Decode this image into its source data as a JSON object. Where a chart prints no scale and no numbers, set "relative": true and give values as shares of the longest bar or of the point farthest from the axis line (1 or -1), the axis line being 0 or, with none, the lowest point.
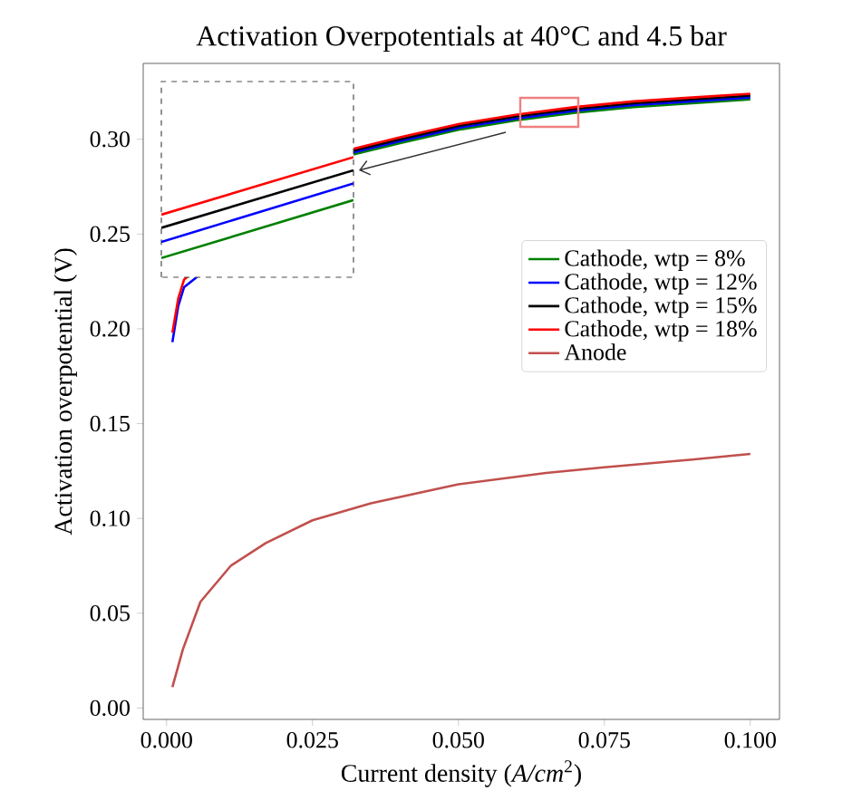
{
  "chart_data": [
    {
      "type": "line",
      "title": "Activation Overpotentials at 40°C and 4.5 bar",
      "xlabel": "Current density (*A/cm*$^{2}$)",
      "ylabel": "Activation overpotential (V)",
      "x": [
        0.001,
        0.002,
        0.003,
        0.032,
        0.04,
        0.05,
        0.06,
        0.07,
        0.08,
        0.09,
        0.1
      ],
      "xlim": [
        -0.004,
        0.105
      ],
      "ylim": [
        -0.006,
        0.34
      ],
      "xticks": [
        {
          "value": 0,
          "label": "0.000"
        },
        {
          "value": 0.025,
          "label": "0.025"
        },
        {
          "value": 0.05,
          "label": "0.050"
        },
        {
          "value": 0.075,
          "label": "0.075"
        },
        {
          "value": 0.1,
          "label": "0.100"
        }
      ],
      "yticks": [
        {
          "value": 0,
          "label": "0.00"
        },
        {
          "value": 0.05,
          "label": "0.05"
        },
        {
          "value": 0.1,
          "label": "0.10"
        },
        {
          "value": 0.15,
          "label": "0.15"
        },
        {
          "value": 0.2,
          "label": "0.20"
        },
        {
          "value": 0.25,
          "label": "0.25"
        },
        {
          "value": 0.3,
          "label": "0.30"
        }
      ],
      "series": [
        {
          "name": "Cathode, wtp = 8%",
          "color": "#008000",
          "values": [
            null,
            null,
            null,
            0.292,
            0.298,
            0.305,
            0.31,
            0.314,
            0.317,
            0.319,
            0.321
          ]
        },
        {
          "name": "Cathode, wtp = 12%",
          "color": "#0000ff",
          "values": [
            0.193,
            0.212,
            0.222,
            0.293,
            0.299,
            0.306,
            0.311,
            0.315,
            0.318,
            0.32,
            0.322
          ]
        },
        {
          "name": "Cathode, wtp = 15%",
          "color": "#000000",
          "values": [
            null,
            null,
            null,
            0.294,
            0.3,
            0.307,
            0.312,
            0.316,
            0.319,
            0.321,
            0.323
          ]
        },
        {
          "name": "Cathode, wtp = 18%",
          "color": "#ff0000",
          "values": [
            0.198,
            0.216,
            0.226,
            0.295,
            0.301,
            0.308,
            0.313,
            0.317,
            0.32,
            0.322,
            0.324
          ]
        },
        {
          "name": "Anode",
          "color": "#c0504d",
          "x": [
            0.001,
            0.0028,
            0.0058,
            0.011,
            0.017,
            0.025,
            0.035,
            0.05,
            0.065,
            0.075,
            0.09,
            0.1
          ],
          "values": [
            0.011,
            0.031,
            0.056,
            0.075,
            0.087,
            0.099,
            0.108,
            0.118,
            0.124,
            0.127,
            0.131,
            0.134
          ]
        }
      ],
      "grid": false,
      "legend": "right",
      "marker": "none"
    },
    {
      "type": "line",
      "relative": true,
      "categories": [
        null,
        null
      ],
      "series": [
        {
          "color": "#008000",
          "values": [
            0,
            0.575
          ]
        },
        {
          "color": "#0000ff",
          "values": [
            0.16,
            0.74
          ]
        },
        {
          "color": "#000000",
          "values": [
            0.3,
            0.87
          ]
        },
        {
          "color": "#ff0000",
          "values": [
            0.43,
            1
          ]
        }
      ]
    }
  ]
}
